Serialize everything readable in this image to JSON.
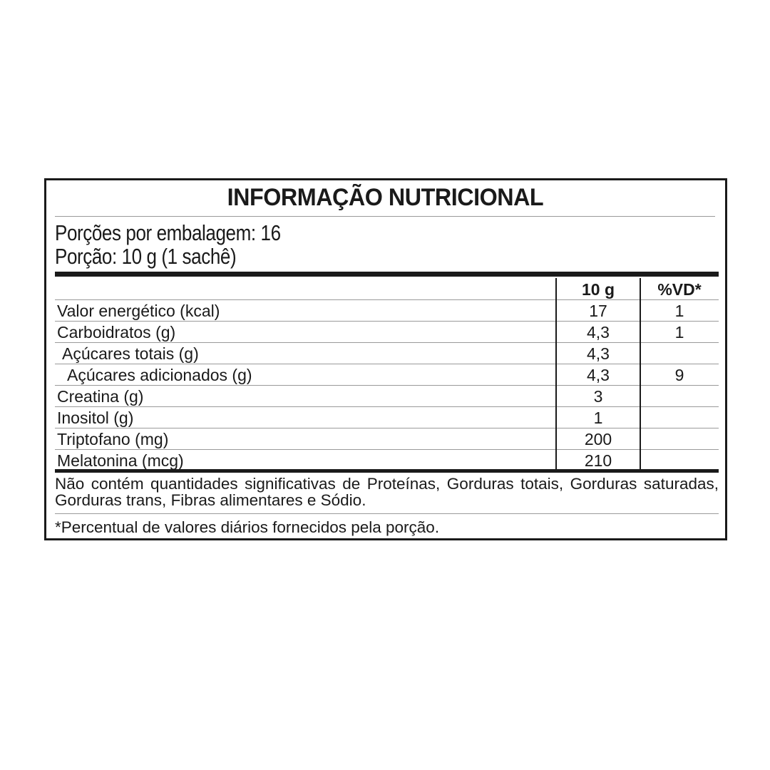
{
  "label": {
    "title": "INFORMAÇÃO NUTRICIONAL",
    "servings_per_package": "Porções por embalagem: 16",
    "serving_size": "Porção: 10 g (1 sachê)",
    "columns": [
      "",
      "10 g",
      "%VD*"
    ],
    "rows": [
      {
        "name": "Valor energético (kcal)",
        "amount": "17",
        "dv": "1",
        "indent": 0
      },
      {
        "name": "Carboidratos (g)",
        "amount": "4,3",
        "dv": "1",
        "indent": 0
      },
      {
        "name": "Açúcares totais (g)",
        "amount": "4,3",
        "dv": "",
        "indent": 1
      },
      {
        "name": "Açúcares adicionados (g)",
        "amount": "4,3",
        "dv": "9",
        "indent": 2
      },
      {
        "name": "Creatina (g)",
        "amount": "3",
        "dv": "",
        "indent": 0
      },
      {
        "name": "Inositol (g)",
        "amount": "1",
        "dv": "",
        "indent": 0
      },
      {
        "name": "Triptofano (mg)",
        "amount": "200",
        "dv": "",
        "indent": 0
      },
      {
        "name": "Melatonina (mcg)",
        "amount": "210",
        "dv": "",
        "indent": 0
      }
    ],
    "note": "Não contém quantidades significativas de Proteínas, Gorduras totais, Gorduras saturadas, Gorduras trans, Fibras alimentares e Sódio.",
    "footnote": "*Percentual de valores diários fornecidos pela porção."
  }
}
